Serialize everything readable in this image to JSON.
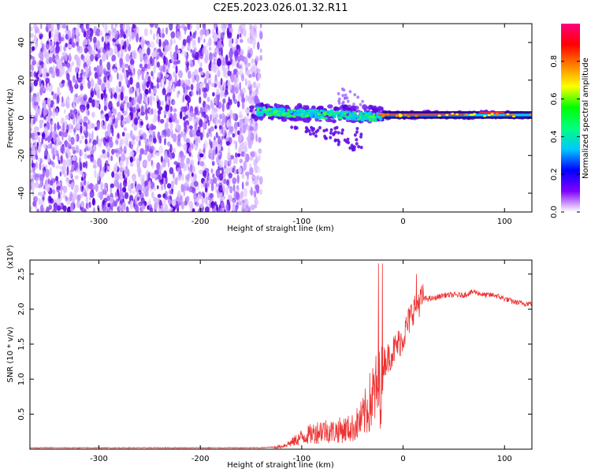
{
  "title": "C2E5.2023.026.01.32.R11",
  "chart_data": [
    {
      "type": "heatmap",
      "xlabel": "Height of straight line (km)",
      "ylabel": "Frequency (Hz)",
      "xlim": [
        -368,
        127
      ],
      "ylim": [
        -50,
        50
      ],
      "xticks": [
        -300,
        -200,
        -100,
        0,
        100
      ],
      "yticks": [
        -40,
        -20,
        0,
        20,
        40
      ],
      "colorbar": {
        "label": "Normalized spectral amplitude",
        "range": [
          0,
          1
        ],
        "ticks": [
          0.0,
          0.2,
          0.4,
          0.6,
          0.8
        ],
        "colors": [
          "#ffffff",
          "#8000ff",
          "#0000ff",
          "#00c8ff",
          "#00ff80",
          "#00ff00",
          "#ffff00",
          "#ff8000",
          "#ff0000",
          "#ff0080"
        ]
      },
      "grid": false
    },
    {
      "type": "line",
      "xlabel": "Height of straight line (km)",
      "ylabel": "SNR (10 * v/v)",
      "y_multiplier": "(x10⁴)",
      "xlim": [
        -368,
        127
      ],
      "ylim": [
        0,
        2.7
      ],
      "xticks": [
        -300,
        -200,
        -100,
        0,
        100
      ],
      "yticks": [
        0.5,
        1.0,
        1.5,
        2.0,
        2.5
      ],
      "series": [
        {
          "color": "#ee3333",
          "x": [
            -368,
            -300,
            -200,
            -140,
            -130,
            -120,
            -110,
            -100,
            -90,
            -80,
            -70,
            -60,
            -50,
            -40,
            -35,
            -30,
            -25,
            -20,
            -15,
            -10,
            -5,
            0,
            5,
            10,
            15,
            20,
            25,
            30,
            40,
            50,
            60,
            70,
            80,
            90,
            100,
            110,
            120,
            127
          ],
          "y": [
            0.02,
            0.02,
            0.02,
            0.02,
            0.03,
            0.05,
            0.12,
            0.22,
            0.28,
            0.35,
            0.32,
            0.35,
            0.38,
            0.55,
            0.75,
            0.95,
            1.1,
            1.25,
            1.3,
            1.4,
            1.5,
            1.6,
            1.8,
            2.0,
            2.1,
            2.15,
            2.15,
            2.15,
            2.2,
            2.2,
            2.2,
            2.25,
            2.2,
            2.2,
            2.15,
            2.1,
            2.08,
            2.08
          ]
        }
      ]
    }
  ]
}
